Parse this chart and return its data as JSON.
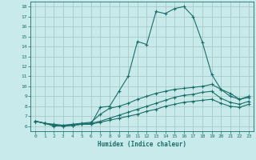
{
  "xlabel": "Humidex (Indice chaleur)",
  "background_color": "#c8eaea",
  "grid_color": "#aac8c8",
  "line_color": "#1a6e6a",
  "x_values": [
    0,
    1,
    2,
    3,
    4,
    5,
    6,
    7,
    8,
    9,
    10,
    11,
    12,
    13,
    14,
    15,
    16,
    17,
    18,
    19,
    20,
    21,
    22,
    23
  ],
  "series": [
    [
      6.5,
      6.3,
      6.0,
      6.1,
      6.1,
      6.2,
      6.2,
      7.9,
      8.0,
      9.5,
      11.0,
      14.5,
      14.2,
      17.5,
      17.3,
      17.8,
      18.0,
      17.0,
      14.4,
      11.2,
      9.7,
      9.3,
      8.7,
      9.0
    ],
    [
      6.5,
      6.3,
      6.2,
      6.1,
      6.2,
      6.3,
      6.4,
      7.2,
      7.8,
      8.0,
      8.3,
      8.7,
      9.0,
      9.3,
      9.5,
      9.7,
      9.8,
      9.9,
      10.0,
      10.2,
      9.7,
      9.0,
      8.7,
      8.9
    ],
    [
      6.5,
      6.3,
      6.1,
      6.0,
      6.1,
      6.2,
      6.3,
      6.5,
      6.8,
      7.1,
      7.4,
      7.7,
      8.0,
      8.3,
      8.6,
      8.9,
      9.1,
      9.2,
      9.4,
      9.5,
      8.8,
      8.4,
      8.2,
      8.5
    ],
    [
      6.5,
      6.3,
      6.1,
      6.0,
      6.1,
      6.2,
      6.2,
      6.4,
      6.6,
      6.8,
      7.0,
      7.2,
      7.5,
      7.7,
      8.0,
      8.2,
      8.4,
      8.5,
      8.6,
      8.7,
      8.3,
      8.0,
      7.9,
      8.2
    ]
  ],
  "ylim": [
    5.5,
    18.5
  ],
  "xlim": [
    -0.5,
    23.5
  ],
  "yticks": [
    6,
    7,
    8,
    9,
    10,
    11,
    12,
    13,
    14,
    15,
    16,
    17,
    18
  ],
  "xticks": [
    0,
    1,
    2,
    3,
    4,
    5,
    6,
    7,
    8,
    9,
    10,
    11,
    12,
    13,
    14,
    15,
    16,
    17,
    18,
    19,
    20,
    21,
    22,
    23
  ]
}
